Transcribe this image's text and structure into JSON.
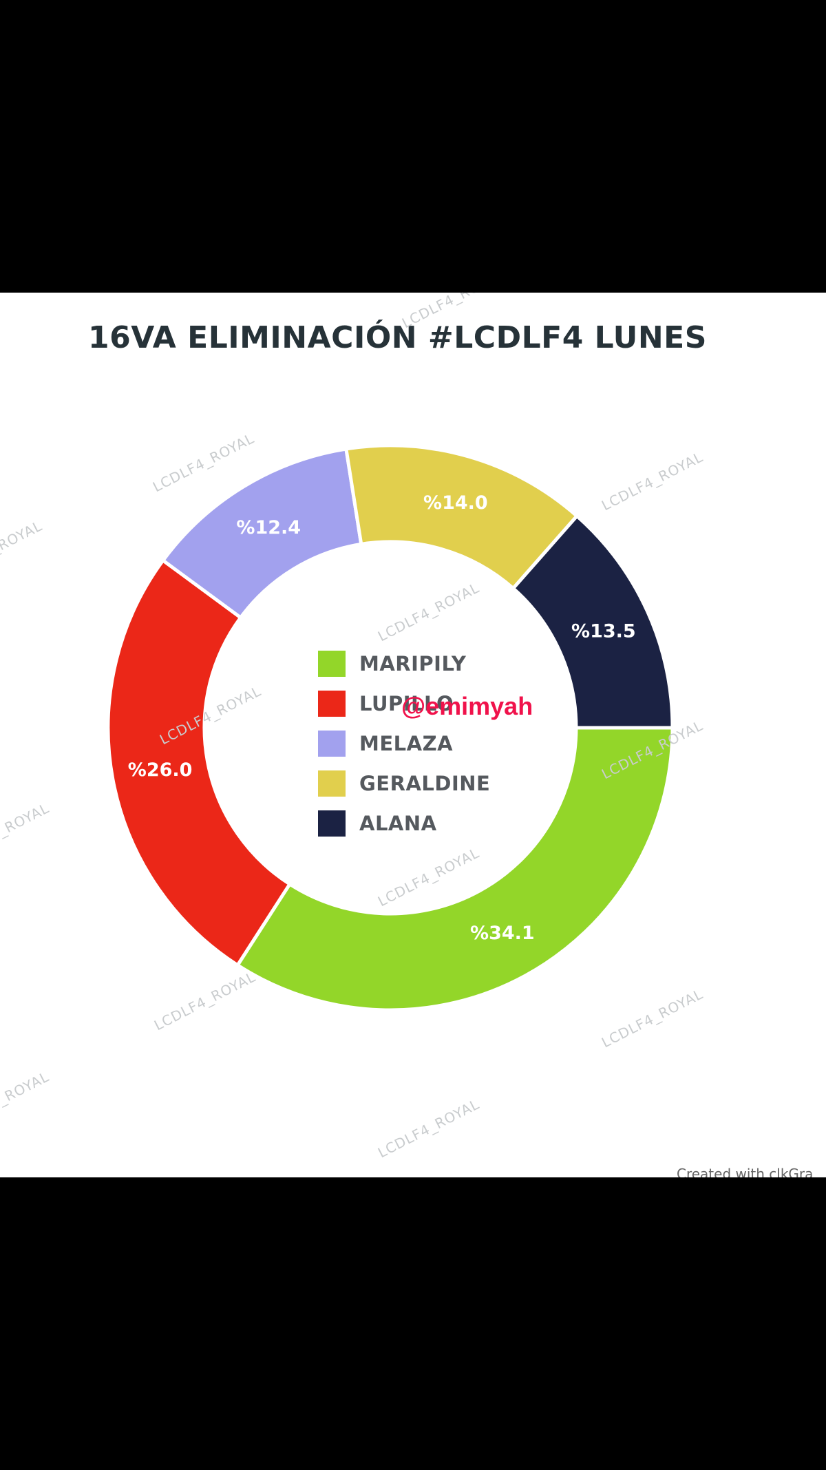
{
  "chart_data": {
    "type": "pie",
    "title": "16VA ELIMINACIÓN #LCDLF4 LUNES",
    "legend_placement": "center",
    "categories": [
      "MARIPILY",
      "LUPILLO",
      "MELAZA",
      "GERALDINE",
      "ALANA"
    ],
    "values": [
      34.1,
      26.0,
      12.4,
      14.0,
      13.5
    ],
    "value_labels": [
      "%34.1",
      "%26.0",
      "%12.4",
      "%14.0",
      "%13.5"
    ],
    "colors": [
      "#93d629",
      "#eb2718",
      "#a2a1ee",
      "#e1cf4d",
      "#1b2243"
    ]
  },
  "watermark": "LCDLF4_ROYAL",
  "handle": "@emimyah",
  "footer": "Created with clkGra"
}
